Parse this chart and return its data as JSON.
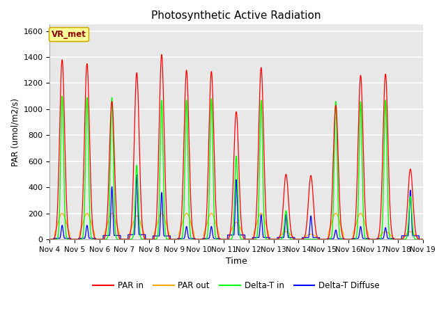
{
  "title": "Photosynthetic Active Radiation",
  "xlabel": "Time",
  "ylabel": "PAR (umol/m2/s)",
  "ylim": [
    0,
    1650
  ],
  "yticks": [
    0,
    200,
    400,
    600,
    800,
    1000,
    1200,
    1400,
    1600
  ],
  "xtick_labels": [
    "Nov 4",
    "Nov 5",
    "Nov 6",
    "Nov 7",
    "Nov 8",
    "Nov 9",
    "Nov 10",
    "Nov 11",
    "Nov 12",
    "Nov 13",
    "Nov 14",
    "Nov 15",
    "Nov 16",
    "Nov 17",
    "Nov 18",
    "Nov 19"
  ],
  "legend_labels": [
    "PAR in",
    "PAR out",
    "Delta-T in",
    "Delta-T Diffuse"
  ],
  "vr_met_label": "VR_met",
  "background_color": "#e8e8e8",
  "grid_color": "white",
  "annotation_box_color": "#ffff99",
  "annotation_text_color": "#8b0000",
  "par_in_peaks": [
    1380,
    1350,
    1060,
    1280,
    1420,
    1300,
    1290,
    980,
    1320,
    500,
    490,
    1030,
    1260,
    1270,
    540
  ],
  "par_out_peaks": [
    200,
    200,
    200,
    180,
    200,
    200,
    200,
    130,
    200,
    60,
    40,
    200,
    200,
    60,
    60
  ],
  "delta_t_peaks": [
    1100,
    1090,
    1090,
    570,
    1070,
    1070,
    1080,
    640,
    1070,
    220,
    0,
    1060,
    1060,
    1070,
    330
  ],
  "delta_t_diff_peaks": [
    120,
    120,
    450,
    550,
    400,
    110,
    110,
    510,
    210,
    210,
    200,
    80,
    110,
    100,
    420
  ],
  "par_in_sigma": 0.1,
  "par_out_sigma": 0.18,
  "delta_t_sigma": 0.06,
  "delta_t_diff_flat_level": 0.07,
  "delta_t_diff_spike_sigma": 0.04,
  "pts_per_day": 200,
  "n_days": 15
}
